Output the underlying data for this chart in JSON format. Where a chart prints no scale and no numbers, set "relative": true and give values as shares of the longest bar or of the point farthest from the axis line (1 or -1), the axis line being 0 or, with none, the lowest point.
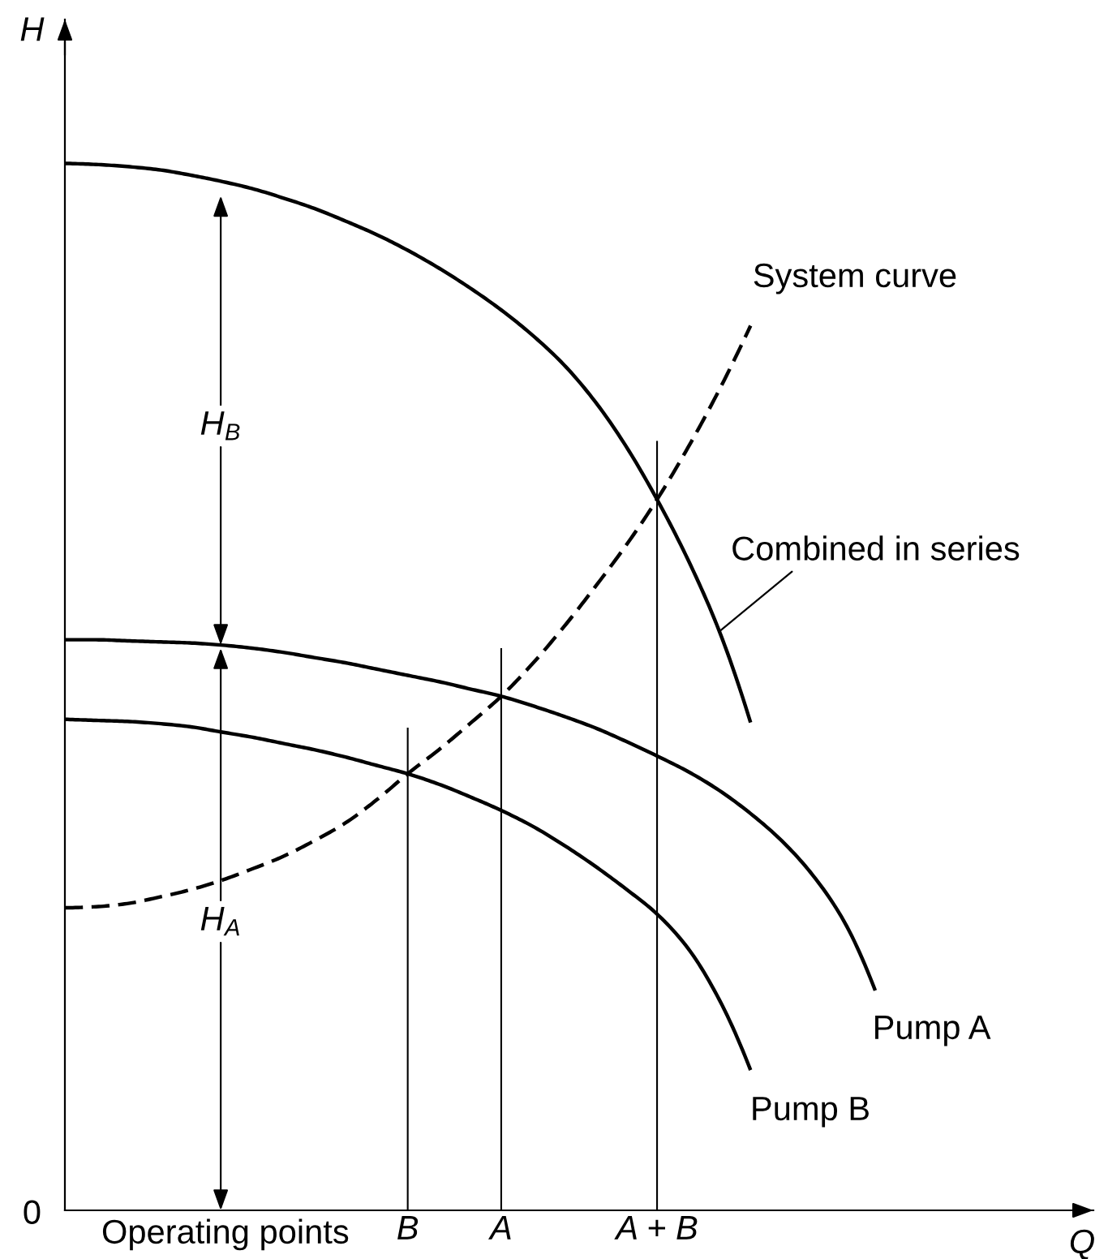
{
  "chart_data": {
    "type": "line",
    "relative": true,
    "xlabel": "Q",
    "ylabel": "H",
    "categories": [
      null,
      null,
      null,
      null,
      null,
      null,
      null,
      null,
      null,
      null,
      null,
      "B",
      null,
      null,
      "A",
      null,
      null,
      null,
      null,
      "A + B",
      null,
      null,
      null,
      null,
      null,
      null,
      null,
      null,
      null,
      null,
      null,
      null,
      null
    ],
    "series": [
      {
        "name": "Combined in series",
        "color": "#000000",
        "values": [
          1.0,
          0.999,
          0.997,
          0.994,
          0.989,
          0.983,
          0.976,
          0.967,
          0.957,
          0.945,
          0.932,
          0.917,
          0.9,
          0.881,
          0.86,
          0.836,
          0.808,
          0.773,
          0.73,
          0.679,
          0.621,
          0.553,
          0.466,
          null,
          null,
          null,
          null,
          null,
          null,
          null,
          null,
          null,
          null
        ]
      },
      {
        "name": "Pump A",
        "color": "#000000",
        "values": [
          0.545,
          0.545,
          0.544,
          0.543,
          0.542,
          0.54,
          0.537,
          0.533,
          0.528,
          0.523,
          0.517,
          0.511,
          0.505,
          0.498,
          0.491,
          0.482,
          0.472,
          0.461,
          0.448,
          0.434,
          0.419,
          0.401,
          0.379,
          0.353,
          0.32,
          0.276,
          0.21,
          null,
          null,
          null,
          null,
          null,
          null
        ]
      },
      {
        "name": "Pump B",
        "color": "#000000",
        "values": [
          0.469,
          0.468,
          0.467,
          0.465,
          0.462,
          0.457,
          0.452,
          0.446,
          0.44,
          0.433,
          0.425,
          0.417,
          0.407,
          0.395,
          0.382,
          0.367,
          0.349,
          0.329,
          0.307,
          0.283,
          0.25,
          0.201,
          0.134,
          null,
          null,
          null,
          null,
          null,
          null,
          null,
          null,
          null,
          null
        ]
      },
      {
        "name": "System curve",
        "color": "#000000",
        "line_style": "dashed",
        "values": [
          0.289,
          0.29,
          0.293,
          0.299,
          0.306,
          0.315,
          0.326,
          0.338,
          0.353,
          0.37,
          0.392,
          0.417,
          0.44,
          0.465,
          0.491,
          0.522,
          0.557,
          0.595,
          0.635,
          0.679,
          0.729,
          0.784,
          0.845,
          null,
          null,
          null,
          null,
          null,
          null,
          null,
          null,
          null,
          null
        ]
      },
      {
        "type": "bar",
        "color": "#000000",
        "values": [
          null,
          null,
          null,
          null,
          null,
          null,
          null,
          null,
          null,
          null,
          null,
          0.461,
          null,
          null,
          0.537,
          null,
          null,
          null,
          null,
          0.735,
          null,
          null,
          null,
          null,
          null,
          null,
          null,
          null,
          null,
          null,
          null,
          null,
          null
        ]
      }
    ],
    "annotations": [
      "Operating points",
      "0",
      "H$_{B}$",
      "H$_{A}$"
    ]
  }
}
